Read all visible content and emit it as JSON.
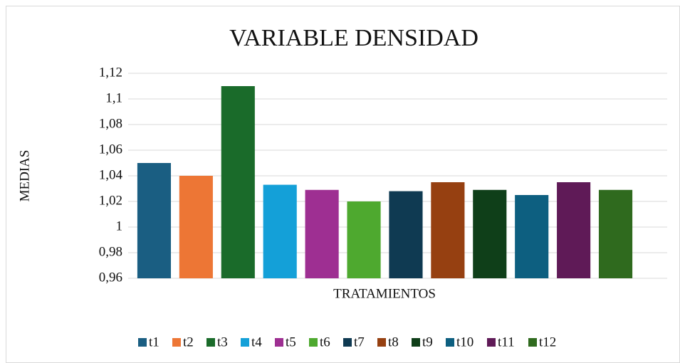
{
  "chart_data": {
    "type": "bar",
    "title": "VARIABLE DENSIDAD",
    "xlabel": "TRATAMIENTOS",
    "ylabel": "MEDIAS",
    "categories": [
      "t1",
      "t2",
      "t3",
      "t4",
      "t5",
      "t6",
      "t7",
      "t8",
      "t9",
      "t10",
      "t11",
      "t12"
    ],
    "values": [
      1.05,
      1.04,
      1.11,
      1.033,
      1.029,
      1.02,
      1.028,
      1.035,
      1.029,
      1.025,
      1.035,
      1.029
    ],
    "colors": [
      "#1a5e82",
      "#ed7635",
      "#1a6b2a",
      "#14a0d8",
      "#9e2f92",
      "#4ea92f",
      "#0f3a52",
      "#964011",
      "#0f3f19",
      "#0d5f80",
      "#5f1a57",
      "#2f6a1e"
    ],
    "ylim": [
      0.96,
      1.12
    ],
    "yticks": [
      {
        "value": 0.96,
        "label": "0,96"
      },
      {
        "value": 0.98,
        "label": "0,98"
      },
      1,
      {
        "value": 1.02,
        "label": "1,02"
      },
      {
        "value": 1.04,
        "label": "1,04"
      },
      {
        "value": 1.06,
        "label": "1,06"
      },
      {
        "value": 1.08,
        "label": "1,08"
      },
      {
        "value": 1.1,
        "label": "1,1"
      },
      {
        "value": 1.12,
        "label": "1,12"
      }
    ],
    "grid": true,
    "legend": "bottom"
  }
}
